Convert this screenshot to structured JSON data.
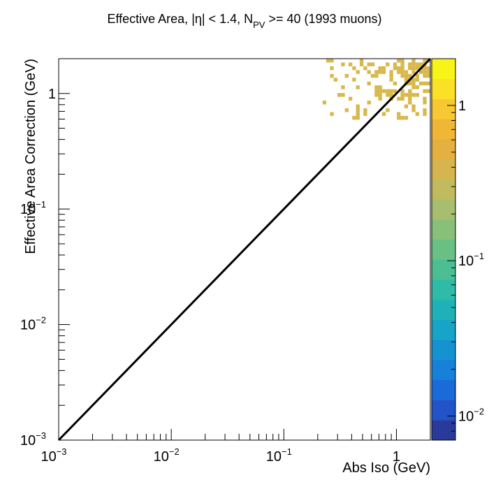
{
  "title": {
    "prefix": "Effective Area, |η| < 1.4, N",
    "subscript": "PV",
    "suffix": " >= 40 (1993 muons)"
  },
  "chart_data": {
    "type": "heatmap",
    "xlabel": "Abs Iso (GeV)",
    "ylabel": "Effective Area Correction (GeV)",
    "x_scale": "log",
    "y_scale": "log",
    "z_scale": "log",
    "xlim": [
      0.001,
      2.0
    ],
    "ylim": [
      0.001,
      2.0
    ],
    "zlim": [
      0.007,
      2.0
    ],
    "x_ticks": [
      {
        "base": "10",
        "exp": "−3",
        "value": 0.001
      },
      {
        "base": "10",
        "exp": "−2",
        "value": 0.01
      },
      {
        "base": "10",
        "exp": "−1",
        "value": 0.1
      },
      {
        "base": "1",
        "exp": "",
        "value": 1
      }
    ],
    "y_ticks": [
      {
        "base": "10",
        "exp": "−3",
        "value": 0.001
      },
      {
        "base": "10",
        "exp": "−2",
        "value": 0.01
      },
      {
        "base": "10",
        "exp": "−1",
        "value": 0.1
      },
      {
        "base": "1",
        "exp": "",
        "value": 1
      }
    ],
    "z_ticks": [
      {
        "base": "10",
        "exp": "−2",
        "value": 0.01
      },
      {
        "base": "10",
        "exp": "−1",
        "value": 0.1
      },
      {
        "base": "1",
        "exp": "",
        "value": 1
      }
    ],
    "reference_line": {
      "label": "y = x",
      "from": [
        0.001,
        0.001
      ],
      "to": [
        2.0,
        2.0
      ],
      "color": "#000000"
    },
    "bin_color": "#d8b84a",
    "occupied_region": {
      "x_range": [
        0.2,
        2.0
      ],
      "y_range": [
        0.55,
        2.0
      ],
      "content": 1
    },
    "grid": false,
    "palette": [
      "#2a3a9a",
      "#2254c8",
      "#1a6ad8",
      "#1780d8",
      "#1592d0",
      "#18a4c8",
      "#1eb2b8",
      "#2ebca8",
      "#4cbe94",
      "#68c084",
      "#88c07a",
      "#a6be6e",
      "#c2ba5e",
      "#d6b44e",
      "#e4b040",
      "#f0b636",
      "#f8c832",
      "#fbe028",
      "#f8f418"
    ]
  }
}
